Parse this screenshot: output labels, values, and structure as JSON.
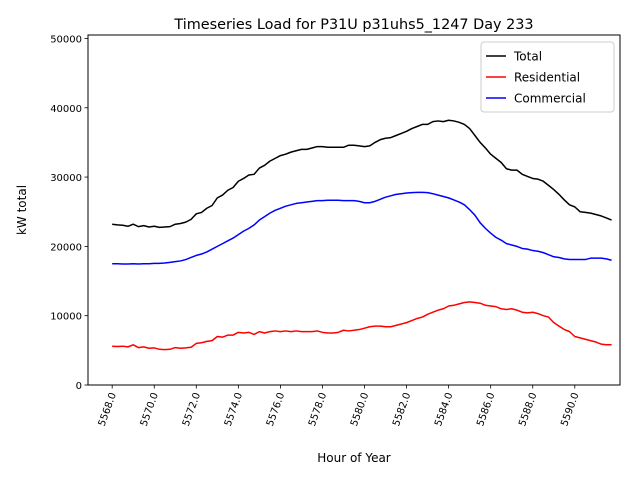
{
  "chart_data": {
    "type": "line",
    "title": "Timeseries Load for P31U p31uhs5_1247  Day 233",
    "xlabel": "Hour of Year",
    "ylabel": "kW total",
    "xlim": [
      5566.85,
      5592.15
    ],
    "ylim": [
      0,
      50500
    ],
    "grid": false,
    "legend_position": "top-right",
    "x_ticks": [
      5568,
      5570,
      5572,
      5574,
      5576,
      5578,
      5580,
      5582,
      5584,
      5586,
      5588,
      5590
    ],
    "x_tick_labels": [
      "5568.0",
      "5570.0",
      "5572.0",
      "5574.0",
      "5576.0",
      "5578.0",
      "5580.0",
      "5582.0",
      "5584.0",
      "5586.0",
      "5588.0",
      "5590.0"
    ],
    "y_ticks": [
      0,
      10000,
      20000,
      30000,
      40000,
      50000
    ],
    "y_tick_labels": [
      "0",
      "10000",
      "20000",
      "30000",
      "40000",
      "50000"
    ],
    "x": [
      5568.0,
      5568.25,
      5568.5,
      5568.75,
      5569.0,
      5569.25,
      5569.5,
      5569.75,
      5570.0,
      5570.25,
      5570.5,
      5570.75,
      5571.0,
      5571.25,
      5571.5,
      5571.75,
      5572.0,
      5572.25,
      5572.5,
      5572.75,
      5573.0,
      5573.25,
      5573.5,
      5573.75,
      5574.0,
      5574.25,
      5574.5,
      5574.75,
      5575.0,
      5575.25,
      5575.5,
      5575.75,
      5576.0,
      5576.25,
      5576.5,
      5576.75,
      5577.0,
      5577.25,
      5577.5,
      5577.75,
      5578.0,
      5578.25,
      5578.5,
      5578.75,
      5579.0,
      5579.25,
      5579.5,
      5579.75,
      5580.0,
      5580.25,
      5580.5,
      5580.75,
      5581.0,
      5581.25,
      5581.5,
      5581.75,
      5582.0,
      5582.25,
      5582.5,
      5582.75,
      5583.0,
      5583.25,
      5583.5,
      5583.75,
      5584.0,
      5584.25,
      5584.5,
      5584.75,
      5585.0,
      5585.25,
      5585.5,
      5585.75,
      5586.0,
      5586.25,
      5586.5,
      5586.75,
      5587.0,
      5587.25,
      5587.5,
      5587.75,
      5588.0,
      5588.25,
      5588.5,
      5588.75,
      5589.0,
      5589.25,
      5589.5,
      5589.75,
      5590.0,
      5590.25,
      5590.5,
      5590.75,
      5591.0,
      5591.25,
      5591.5,
      5591.75
    ],
    "series": [
      {
        "name": "Total",
        "color": "#000000",
        "values": [
          23200,
          23100,
          23050,
          22900,
          23200,
          22850,
          23000,
          22800,
          22900,
          22750,
          22800,
          22850,
          23200,
          23300,
          23500,
          23900,
          24700,
          24900,
          25500,
          25900,
          27000,
          27400,
          28100,
          28500,
          29400,
          29800,
          30300,
          30400,
          31300,
          31700,
          32300,
          32700,
          33100,
          33300,
          33600,
          33800,
          34000,
          34000,
          34200,
          34400,
          34400,
          34300,
          34300,
          34300,
          34300,
          34600,
          34600,
          34500,
          34400,
          34500,
          35000,
          35400,
          35600,
          35700,
          36000,
          36300,
          36600,
          37000,
          37300,
          37600,
          37600,
          38000,
          38100,
          38000,
          38200,
          38100,
          37900,
          37600,
          37000,
          36000,
          35000,
          34200,
          33300,
          32700,
          32100,
          31200,
          31000,
          31000,
          30400,
          30100,
          29800,
          29700,
          29400,
          28800,
          28200,
          27500,
          26700,
          26000,
          25700,
          25000,
          24900,
          24800,
          24600,
          24400,
          24100,
          23800
        ]
      },
      {
        "name": "Residential",
        "color": "#ff0000",
        "values": [
          5600,
          5550,
          5600,
          5500,
          5800,
          5400,
          5500,
          5300,
          5350,
          5150,
          5100,
          5150,
          5400,
          5300,
          5350,
          5450,
          6000,
          6100,
          6300,
          6400,
          7000,
          6900,
          7200,
          7200,
          7600,
          7500,
          7600,
          7300,
          7700,
          7500,
          7700,
          7800,
          7700,
          7800,
          7700,
          7800,
          7700,
          7700,
          7700,
          7800,
          7600,
          7500,
          7500,
          7600,
          7900,
          7800,
          7900,
          8000,
          8200,
          8400,
          8500,
          8500,
          8400,
          8400,
          8600,
          8800,
          9000,
          9300,
          9600,
          9800,
          10200,
          10500,
          10800,
          11000,
          11400,
          11500,
          11700,
          11900,
          12000,
          11900,
          11800,
          11500,
          11400,
          11300,
          11000,
          10900,
          11000,
          10800,
          10500,
          10400,
          10500,
          10300,
          10000,
          9800,
          9000,
          8500,
          8000,
          7700,
          7000,
          6800,
          6600,
          6400,
          6200,
          5900,
          5800,
          5800
        ]
      },
      {
        "name": "Commercial",
        "color": "#0000ff",
        "values": [
          17500,
          17500,
          17450,
          17450,
          17500,
          17450,
          17500,
          17500,
          17550,
          17550,
          17600,
          17700,
          17800,
          17900,
          18100,
          18400,
          18700,
          18900,
          19200,
          19600,
          20000,
          20400,
          20800,
          21200,
          21700,
          22200,
          22600,
          23100,
          23800,
          24300,
          24800,
          25200,
          25500,
          25800,
          26000,
          26200,
          26300,
          26400,
          26500,
          26600,
          26600,
          26650,
          26650,
          26650,
          26600,
          26600,
          26600,
          26500,
          26300,
          26300,
          26500,
          26800,
          27100,
          27300,
          27500,
          27600,
          27700,
          27750,
          27800,
          27800,
          27750,
          27600,
          27400,
          27200,
          27000,
          26700,
          26400,
          26000,
          25300,
          24500,
          23400,
          22600,
          21900,
          21300,
          20900,
          20400,
          20200,
          20000,
          19700,
          19600,
          19400,
          19300,
          19100,
          18800,
          18500,
          18400,
          18200,
          18100,
          18100,
          18100,
          18100,
          18300,
          18300,
          18300,
          18200,
          18000
        ]
      }
    ]
  }
}
